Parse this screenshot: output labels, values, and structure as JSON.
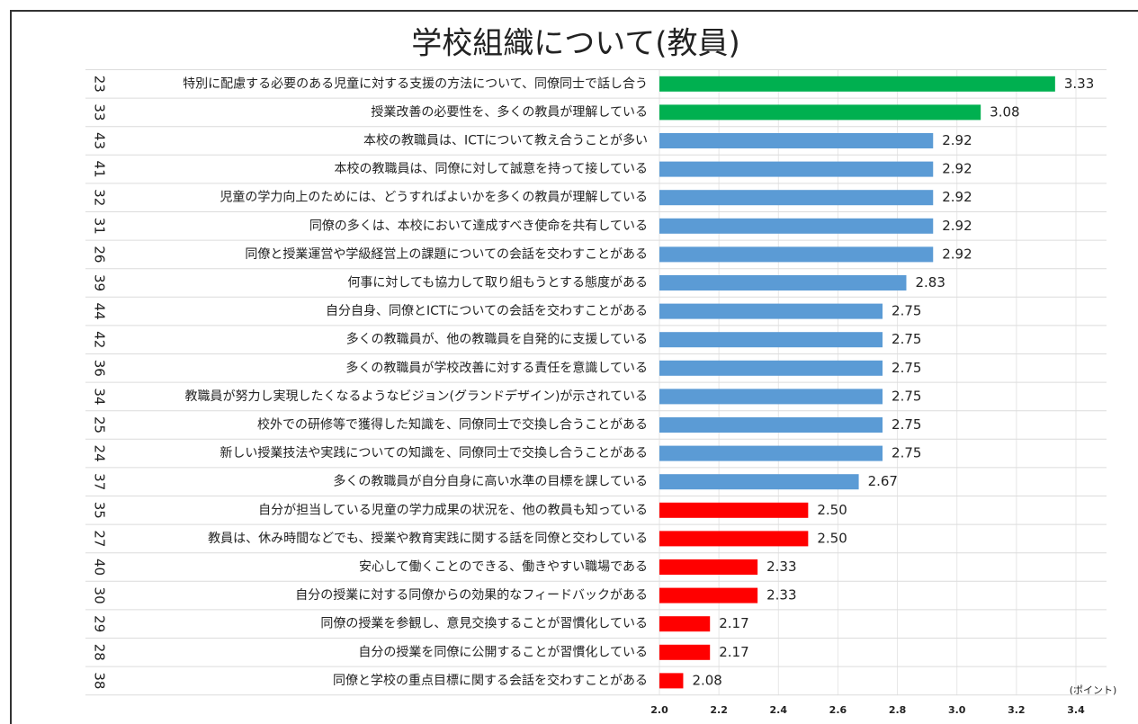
{
  "chart_data": {
    "type": "barh",
    "title": "学校組織について(教員)",
    "x_unit_label": "(ポイント)",
    "item_numbers": [
      "23",
      "33",
      "43",
      "41",
      "32",
      "31",
      "26",
      "39",
      "44",
      "42",
      "36",
      "34",
      "25",
      "24",
      "37",
      "35",
      "27",
      "40",
      "30",
      "29",
      "28",
      "38"
    ],
    "categories": [
      "特別に配慮する必要のある児童に対する支援の方法について、同僚同士で話し合う",
      "授業改善の必要性を、多くの教員が理解している",
      "本校の教職員は、ICTについて教え合うことが多い",
      "本校の教職員は、同僚に対して誠意を持って接している",
      "児童の学力向上のためには、どうすればよいかを多くの教員が理解している",
      "同僚の多くは、本校において達成すべき使命を共有している",
      "同僚と授業運営や学級経営上の課題についての会話を交わすことがある",
      "何事に対しても協力して取り組もうとする態度がある",
      "自分自身、同僚とICTについての会話を交わすことがある",
      "多くの教職員が、他の教職員を自発的に支援している",
      "多くの教職員が学校改善に対する責任を意識している",
      "教職員が努力し実現したくなるようなビジョン(グランドデザイン)が示されている",
      "校外での研修等で獲得した知識を、同僚同士で交換し合うことがある",
      "新しい授業技法や実践についての知識を、同僚同士で交換し合うことがある",
      "多くの教職員が自分自身に高い水準の目標を課している",
      "自分が担当している児童の学力成果の状況を、他の教員も知っている",
      "教員は、休み時間などでも、授業や教育実践に関する話を同僚と交わしている",
      "安心して働くことのできる、働きやすい職場である",
      "自分の授業に対する同僚からの効果的なフィードバックがある",
      "同僚の授業を参観し、意見交換することが習慣化している",
      "自分の授業を同僚に公開することが習慣化している",
      "同僚と学校の重点目標に関する会話を交わすことがある"
    ],
    "values": [
      3.33,
      3.08,
      2.92,
      2.92,
      2.92,
      2.92,
      2.92,
      2.83,
      2.75,
      2.75,
      2.75,
      2.75,
      2.75,
      2.75,
      2.67,
      2.5,
      2.5,
      2.33,
      2.33,
      2.17,
      2.17,
      2.08
    ],
    "value_labels": [
      "3.33",
      "3.08",
      "2.92",
      "2.92",
      "2.92",
      "2.92",
      "2.92",
      "2.83",
      "2.75",
      "2.75",
      "2.75",
      "2.75",
      "2.75",
      "2.75",
      "2.67",
      "2.50",
      "2.50",
      "2.33",
      "2.33",
      "2.17",
      "2.17",
      "2.08"
    ],
    "colors": [
      "#00b050",
      "#00b050",
      "#5b9bd5",
      "#5b9bd5",
      "#5b9bd5",
      "#5b9bd5",
      "#5b9bd5",
      "#5b9bd5",
      "#5b9bd5",
      "#5b9bd5",
      "#5b9bd5",
      "#5b9bd5",
      "#5b9bd5",
      "#5b9bd5",
      "#5b9bd5",
      "#ff0000",
      "#ff0000",
      "#ff0000",
      "#ff0000",
      "#ff0000",
      "#ff0000",
      "#ff0000"
    ],
    "xlim": [
      2.0,
      3.4
    ],
    "xticks": [
      {
        "value": 2.0,
        "label": "2.0"
      },
      2.2,
      2.4,
      2.6,
      2.8,
      {
        "value": 3.0,
        "label": "3.0"
      },
      3.2,
      3.4
    ],
    "grid": true
  }
}
